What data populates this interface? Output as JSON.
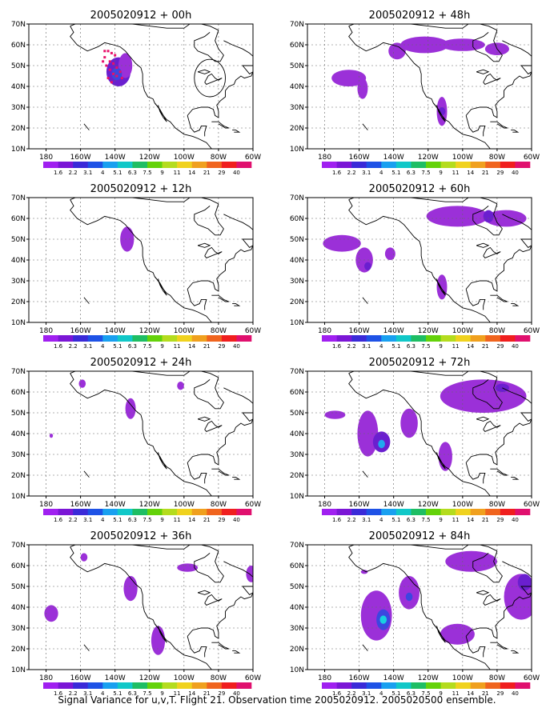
{
  "caption": "Signal Variance for u,v,T. Flight 21. Observation time 2005020912. 2005020500 ensemble.",
  "y_tick_labels": [
    "70N",
    "60N",
    "50N",
    "40N",
    "30N",
    "20N",
    "10N"
  ],
  "x_tick_labels": [
    "180",
    "160W",
    "140W",
    "120W",
    "100W",
    "80W",
    "60W"
  ],
  "colorbar": {
    "labels": [
      "1.6",
      "2.2",
      "3.1",
      "4",
      "5.1",
      "6.3",
      "7.5",
      "9",
      "11",
      "14",
      "21",
      "29",
      "40"
    ],
    "colors": [
      "#a020f0",
      "#7b16d6",
      "#3a2ad8",
      "#1e52e6",
      "#19a0f0",
      "#11c8c8",
      "#1ebe64",
      "#64d20a",
      "#b4dc1e",
      "#f0d21e",
      "#f0a01e",
      "#f0641e",
      "#f01e1e",
      "#e0106e"
    ]
  },
  "panels": [
    {
      "title": "2005020912 + 00h",
      "blobs": [
        {
          "lon": -138,
          "lat": 47,
          "rlon": 7,
          "rlat": 7,
          "level": 1
        },
        {
          "lon": -134,
          "lat": 50,
          "rlon": 4,
          "rlat": 6,
          "level": 0
        },
        {
          "lon": -139,
          "lat": 46,
          "rlon": 3,
          "rlat": 3,
          "level": 2
        }
      ],
      "circle": {
        "lon": -85,
        "lat": 44,
        "rlon": 9,
        "rlat": 9
      },
      "obs_points": [
        [
          -146,
          57
        ],
        [
          -144,
          57
        ],
        [
          -142,
          56
        ],
        [
          -140,
          55
        ],
        [
          -146,
          54
        ],
        [
          -143,
          52
        ],
        [
          -141,
          51
        ],
        [
          -139,
          49
        ],
        [
          -137,
          47
        ],
        [
          -136,
          44
        ],
        [
          -139,
          45
        ],
        [
          -141,
          46
        ],
        [
          -143,
          48
        ],
        [
          -145,
          50
        ],
        [
          -147,
          52
        ],
        [
          -144,
          44
        ],
        [
          -142,
          42
        ]
      ]
    },
    {
      "title": "2005020912 + 48h",
      "blobs": [
        {
          "lon": -166,
          "lat": 44,
          "rlon": 10,
          "rlat": 4,
          "level": 0
        },
        {
          "lon": -158,
          "lat": 39,
          "rlon": 3,
          "rlat": 5,
          "level": 0
        },
        {
          "lon": -122,
          "lat": 60,
          "rlon": 14,
          "rlat": 4,
          "level": 0
        },
        {
          "lon": -100,
          "lat": 60,
          "rlon": 13,
          "rlat": 3,
          "level": 0
        },
        {
          "lon": -80,
          "lat": 58,
          "rlon": 7,
          "rlat": 3,
          "level": 0
        },
        {
          "lon": -138,
          "lat": 57,
          "rlon": 5,
          "rlat": 4,
          "level": 0
        },
        {
          "lon": -112,
          "lat": 28,
          "rlon": 3,
          "rlat": 7,
          "level": 0
        },
        {
          "lon": -112,
          "lat": 28,
          "rlon": 2,
          "rlat": 2,
          "level": 1
        }
      ]
    },
    {
      "title": "2005020912 + 12h",
      "blobs": [
        {
          "lon": -133,
          "lat": 50,
          "rlon": 4,
          "rlat": 6,
          "level": 0
        }
      ]
    },
    {
      "title": "2005020912 + 60h",
      "blobs": [
        {
          "lon": -170,
          "lat": 48,
          "rlon": 11,
          "rlat": 4,
          "level": 0
        },
        {
          "lon": -157,
          "lat": 40,
          "rlon": 5,
          "rlat": 6,
          "level": 0
        },
        {
          "lon": -155,
          "lat": 37,
          "rlon": 2,
          "rlat": 2,
          "level": 1
        },
        {
          "lon": -142,
          "lat": 43,
          "rlon": 3,
          "rlat": 3,
          "level": 0
        },
        {
          "lon": -112,
          "lat": 27,
          "rlon": 3,
          "rlat": 6,
          "level": 0
        },
        {
          "lon": -103,
          "lat": 61,
          "rlon": 18,
          "rlat": 5,
          "level": 0
        },
        {
          "lon": -75,
          "lat": 60,
          "rlon": 12,
          "rlat": 4,
          "level": 0
        },
        {
          "lon": -85,
          "lat": 61,
          "rlon": 3,
          "rlat": 3,
          "level": 1
        }
      ]
    },
    {
      "title": "2005020912 + 24h",
      "blobs": [
        {
          "lon": -131,
          "lat": 52,
          "rlon": 3,
          "rlat": 5,
          "level": 0
        },
        {
          "lon": -159,
          "lat": 64,
          "rlon": 2,
          "rlat": 2,
          "level": 0
        },
        {
          "lon": -102,
          "lat": 63,
          "rlon": 2,
          "rlat": 2,
          "level": 0
        },
        {
          "lon": -177,
          "lat": 39,
          "rlon": 1,
          "rlat": 1,
          "level": 0
        }
      ]
    },
    {
      "title": "2005020912 + 72h",
      "blobs": [
        {
          "lon": -174,
          "lat": 49,
          "rlon": 6,
          "rlat": 2,
          "level": 0
        },
        {
          "lon": -155,
          "lat": 40,
          "rlon": 6,
          "rlat": 11,
          "level": 0
        },
        {
          "lon": -147,
          "lat": 36,
          "rlon": 5,
          "rlat": 5,
          "level": 1
        },
        {
          "lon": -147,
          "lat": 35,
          "rlon": 2,
          "rlat": 2,
          "level": 3
        },
        {
          "lon": -131,
          "lat": 45,
          "rlon": 5,
          "rlat": 7,
          "level": 0
        },
        {
          "lon": -110,
          "lat": 29,
          "rlon": 4,
          "rlat": 7,
          "level": 0
        },
        {
          "lon": -88,
          "lat": 58,
          "rlon": 25,
          "rlat": 8,
          "level": 0
        },
        {
          "lon": -77,
          "lat": 62,
          "rlon": 4,
          "rlat": 2,
          "level": 1
        }
      ]
    },
    {
      "title": "2005020912 + 36h",
      "blobs": [
        {
          "lon": -177,
          "lat": 37,
          "rlon": 4,
          "rlat": 4,
          "level": 0
        },
        {
          "lon": -158,
          "lat": 64,
          "rlon": 2,
          "rlat": 2,
          "level": 0
        },
        {
          "lon": -131,
          "lat": 49,
          "rlon": 4,
          "rlat": 6,
          "level": 0
        },
        {
          "lon": -115,
          "lat": 24,
          "rlon": 4,
          "rlat": 7,
          "level": 0
        },
        {
          "lon": -98,
          "lat": 59,
          "rlon": 6,
          "rlat": 2,
          "level": 0
        },
        {
          "lon": -61,
          "lat": 56,
          "rlon": 3,
          "rlat": 4,
          "level": 0
        }
      ]
    },
    {
      "title": "2005020912 + 84h",
      "blobs": [
        {
          "lon": -150,
          "lat": 36,
          "rlon": 9,
          "rlat": 12,
          "level": 0
        },
        {
          "lon": -146,
          "lat": 34,
          "rlon": 4,
          "rlat": 5,
          "level": 2
        },
        {
          "lon": -146,
          "lat": 34,
          "rlon": 2,
          "rlat": 2,
          "level": 4
        },
        {
          "lon": -131,
          "lat": 47,
          "rlon": 6,
          "rlat": 8,
          "level": 0
        },
        {
          "lon": -131,
          "lat": 45,
          "rlon": 2,
          "rlat": 2,
          "level": 2
        },
        {
          "lon": -157,
          "lat": 57,
          "rlon": 2,
          "rlat": 1,
          "level": 0
        },
        {
          "lon": -103,
          "lat": 27,
          "rlon": 10,
          "rlat": 5,
          "level": 0
        },
        {
          "lon": -66,
          "lat": 45,
          "rlon": 10,
          "rlat": 11,
          "level": 0
        },
        {
          "lon": -95,
          "lat": 62,
          "rlon": 15,
          "rlat": 5,
          "level": 0
        },
        {
          "lon": -64,
          "lat": 52,
          "rlon": 4,
          "rlat": 4,
          "level": 1
        }
      ]
    }
  ]
}
